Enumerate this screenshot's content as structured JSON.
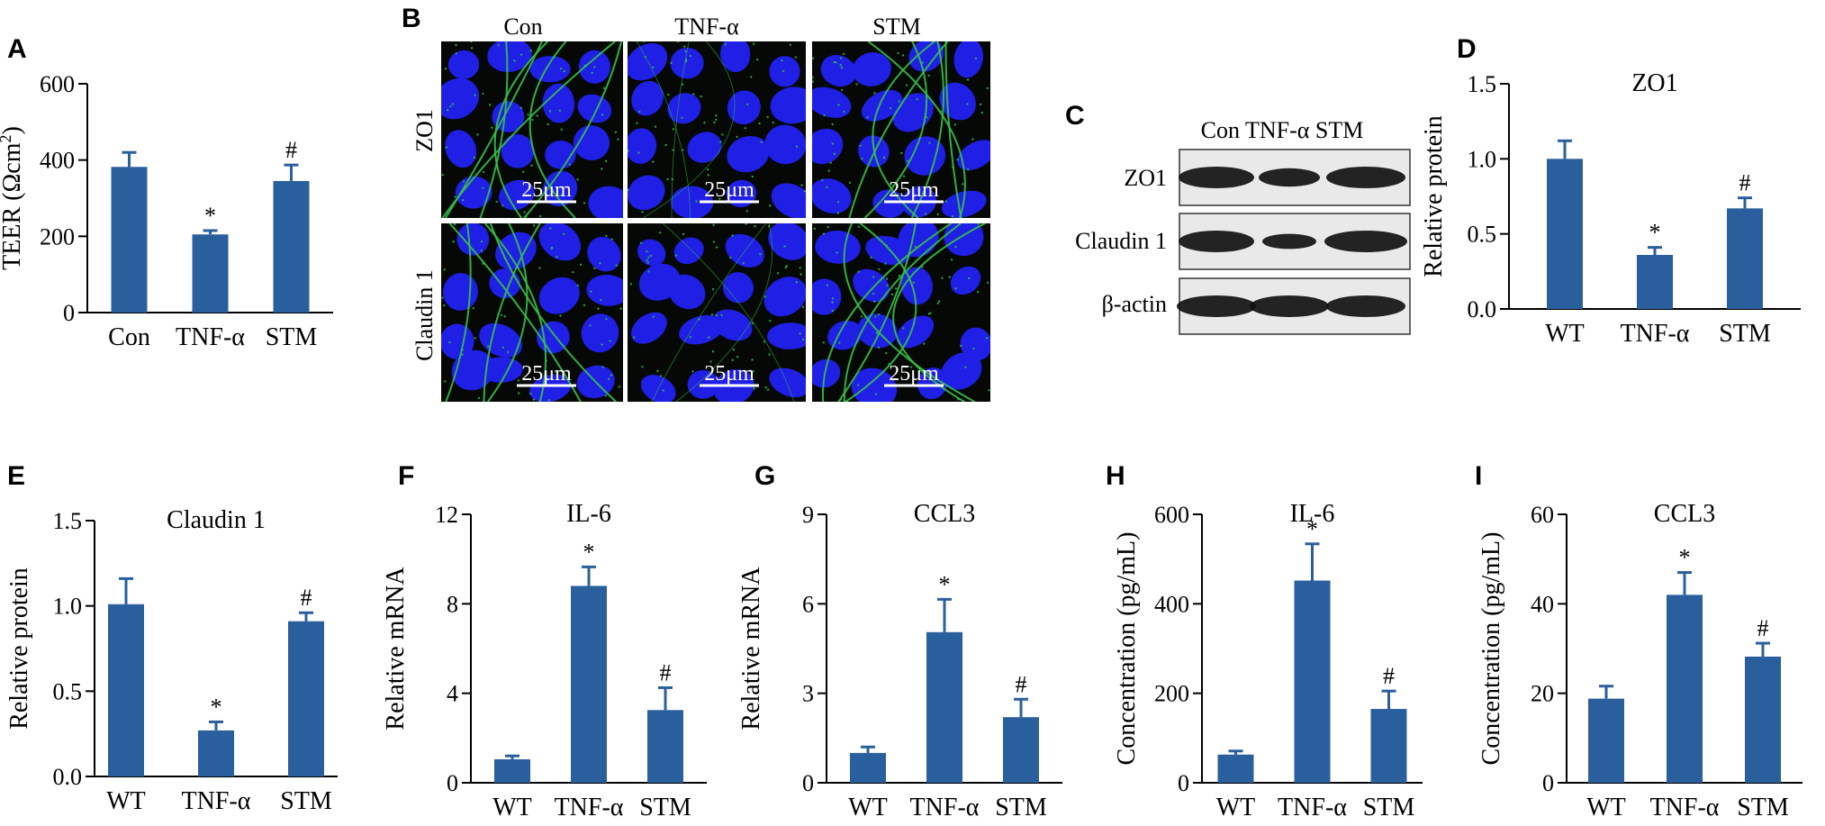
{
  "colors": {
    "bar": "#2a5f9e",
    "axis": "#000000",
    "nuclei": "#1f1fe6",
    "junction": "#36c24a",
    "cell_bg": "#050805"
  },
  "panels": {
    "A": {
      "letter": "A"
    },
    "B": {
      "letter": "B",
      "columns": [
        "Con",
        "TNF-α",
        "STM"
      ],
      "rows": [
        "ZO1",
        "Claudin 1"
      ],
      "scale_label": "25μm"
    },
    "C": {
      "letter": "C",
      "lanes": "Con  TNF-α STM",
      "rows": [
        "ZO1",
        "Claudin 1",
        "β-actin"
      ]
    },
    "D": {
      "letter": "D"
    },
    "E": {
      "letter": "E"
    },
    "F": {
      "letter": "F"
    },
    "G": {
      "letter": "G"
    },
    "H": {
      "letter": "H"
    },
    "I": {
      "letter": "I"
    }
  },
  "chart_data": [
    {
      "panel": "A",
      "type": "bar",
      "title": "",
      "ylabel": "TEER (Ωcm²)",
      "categories": [
        "Con",
        "TNF-α",
        "STM"
      ],
      "values": [
        382,
        205,
        345
      ],
      "errors": [
        38,
        10,
        42
      ],
      "marks": [
        "",
        "*",
        "#"
      ],
      "ylim": [
        0,
        600
      ],
      "yticks": [
        0,
        200,
        400,
        600
      ]
    },
    {
      "panel": "D",
      "type": "bar",
      "title": "ZO1",
      "ylabel": "Relative protein",
      "categories": [
        "WT",
        "TNF-α",
        "STM"
      ],
      "values": [
        1.0,
        0.36,
        0.67
      ],
      "errors": [
        0.12,
        0.05,
        0.07
      ],
      "marks": [
        "",
        "*",
        "#"
      ],
      "ylim": [
        0,
        1.5
      ],
      "yticks": [
        0.0,
        0.5,
        1.0,
        1.5
      ]
    },
    {
      "panel": "E",
      "type": "bar",
      "title": "Claudin 1",
      "ylabel": "Relative protein",
      "categories": [
        "WT",
        "TNF-α",
        "STM"
      ],
      "values": [
        1.01,
        0.27,
        0.91
      ],
      "errors": [
        0.15,
        0.05,
        0.05
      ],
      "marks": [
        "",
        "*",
        "#"
      ],
      "ylim": [
        0,
        1.5
      ],
      "yticks": [
        0.0,
        0.5,
        1.0,
        1.5
      ]
    },
    {
      "panel": "F",
      "type": "bar",
      "title": "IL-6",
      "ylabel": "Relative mRNA",
      "categories": [
        "WT",
        "TNF-α",
        "STM"
      ],
      "values": [
        1.05,
        8.8,
        3.25
      ],
      "errors": [
        0.15,
        0.85,
        1.0
      ],
      "marks": [
        "",
        "*",
        "#"
      ],
      "ylim": [
        0,
        12
      ],
      "yticks": [
        0,
        4,
        8,
        12
      ]
    },
    {
      "panel": "G",
      "type": "bar",
      "title": "CCL3",
      "ylabel": "Relative mRNA",
      "categories": [
        "WT",
        "TNF-α",
        "STM"
      ],
      "values": [
        1.0,
        5.05,
        2.2
      ],
      "errors": [
        0.2,
        1.1,
        0.6
      ],
      "marks": [
        "",
        "*",
        "#"
      ],
      "ylim": [
        0,
        9
      ],
      "yticks": [
        0,
        3,
        6,
        9
      ]
    },
    {
      "panel": "H",
      "type": "bar",
      "title": "IL-6",
      "ylabel": "Concentration (pg/mL)",
      "categories": [
        "WT",
        "TNF-α",
        "STM"
      ],
      "values": [
        63,
        452,
        165
      ],
      "errors": [
        8,
        82,
        40
      ],
      "marks": [
        "",
        "*",
        "#"
      ],
      "ylim": [
        0,
        600
      ],
      "yticks": [
        0,
        200,
        400,
        600
      ]
    },
    {
      "panel": "I",
      "type": "bar",
      "title": "CCL3",
      "ylabel": "Concentration (pg/mL)",
      "categories": [
        "WT",
        "TNF-α",
        "STM"
      ],
      "values": [
        18.8,
        42,
        28.2
      ],
      "errors": [
        2.8,
        5,
        3
      ],
      "marks": [
        "",
        "*",
        "#"
      ],
      "ylim": [
        0,
        60
      ],
      "yticks": [
        0,
        20,
        40,
        60
      ]
    }
  ]
}
